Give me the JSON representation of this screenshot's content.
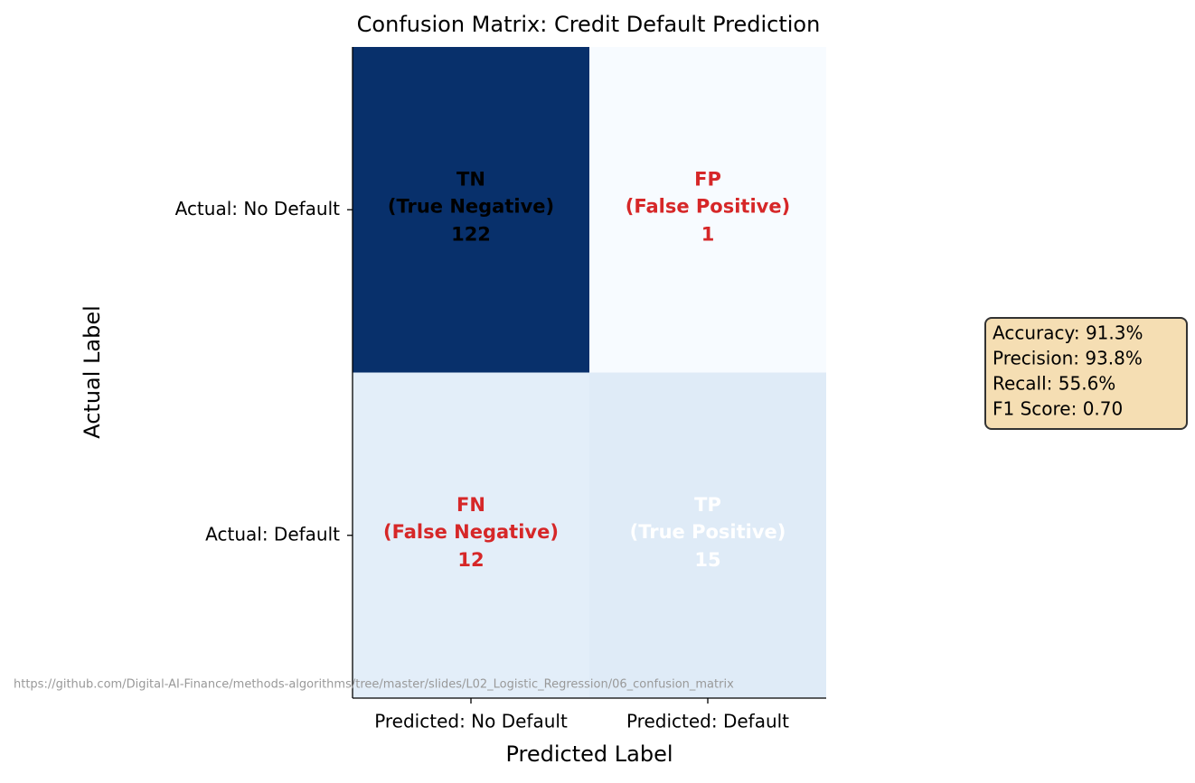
{
  "chart_data": {
    "type": "heatmap",
    "title": "Confusion Matrix: Credit Default Prediction",
    "xlabel": "Predicted Label",
    "ylabel": "Actual Label",
    "x_categories": [
      "Predicted: No Default",
      "Predicted: Default"
    ],
    "y_categories": [
      "Actual: No Default",
      "Actual: Default"
    ],
    "values": [
      [
        122,
        1
      ],
      [
        12,
        15
      ]
    ],
    "cell_labels": [
      [
        {
          "abbr": "TN",
          "name": "(True Negative)"
        },
        {
          "abbr": "FP",
          "name": "(False Positive)"
        }
      ],
      [
        {
          "abbr": "FN",
          "name": "(False Negative)"
        },
        {
          "abbr": "TP",
          "name": "(True Positive)"
        }
      ]
    ],
    "cell_colors": [
      [
        "#08306b",
        "#f7fbff"
      ],
      [
        "#e3eef9",
        "#dfebf7"
      ]
    ],
    "text_colors": [
      [
        "#000000",
        "#d62728"
      ],
      [
        "#d62728",
        "#ffffff"
      ]
    ],
    "metrics": [
      "Accuracy: 91.3%",
      "Precision: 93.8%",
      "Recall: 55.6%",
      "F1 Score: 0.70"
    ],
    "metrics_box_color": "#f5deb3",
    "source": "https://github.com/Digital-AI-Finance/methods-algorithms/tree/master/slides/L02_Logistic_Regression/06_confusion_matrix"
  }
}
